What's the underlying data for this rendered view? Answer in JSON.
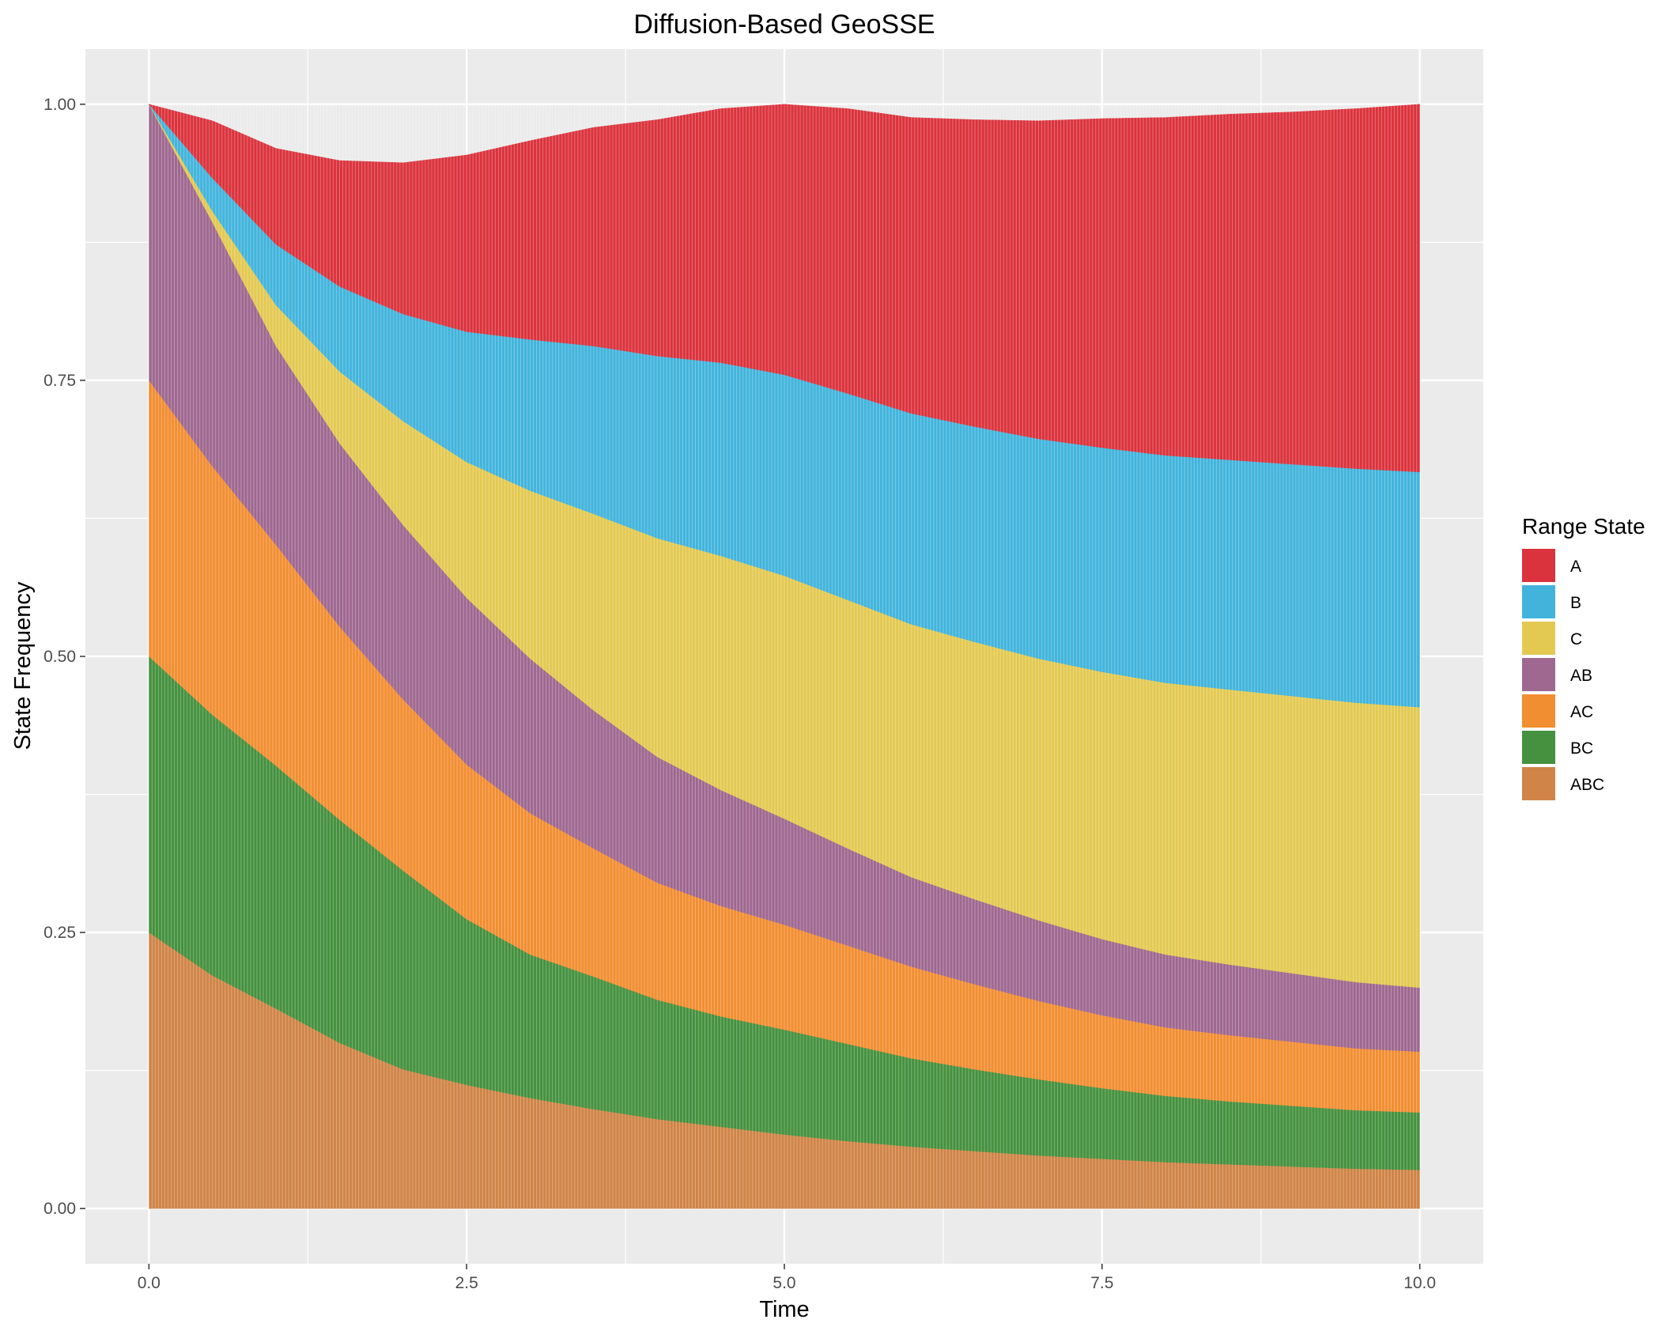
{
  "chart_data": {
    "type": "area",
    "stacked": true,
    "title": "Diffusion-Based GeoSSE",
    "xlabel": "Time",
    "ylabel": "State Frequency",
    "xlim": [
      -0.5,
      10.5
    ],
    "ylim": [
      -0.05,
      1.05
    ],
    "x_ticks": [
      "0.0",
      "2.5",
      "5.0",
      "7.5",
      "10.0"
    ],
    "x_tick_values": [
      0,
      2.5,
      5,
      7.5,
      10
    ],
    "y_ticks": [
      "0.00",
      "0.25",
      "0.50",
      "0.75",
      "1.00"
    ],
    "y_tick_values": [
      0,
      0.25,
      0.5,
      0.75,
      1.0
    ],
    "grid": true,
    "legend": {
      "title": "Range State",
      "position": "right"
    },
    "x": [
      0,
      0.5,
      1,
      1.5,
      2,
      2.5,
      3,
      3.5,
      4,
      4.5,
      5,
      5.5,
      6,
      6.5,
      7,
      7.5,
      8,
      8.5,
      9,
      9.5,
      10
    ],
    "stack_order_bottom_to_top": [
      "ABC",
      "BC",
      "AC",
      "AB",
      "C",
      "B",
      "A"
    ],
    "series": [
      {
        "name": "A",
        "color": "#DB333D",
        "values": [
          0,
          0.052,
          0.087,
          0.114,
          0.137,
          0.16,
          0.18,
          0.198,
          0.214,
          0.23,
          0.245,
          0.258,
          0.268,
          0.278,
          0.288,
          0.298,
          0.306,
          0.313,
          0.319,
          0.326,
          0.333
        ]
      },
      {
        "name": "B",
        "color": "#42B4DC",
        "values": [
          0,
          0.03,
          0.055,
          0.077,
          0.097,
          0.118,
          0.137,
          0.152,
          0.165,
          0.175,
          0.182,
          0.187,
          0.191,
          0.195,
          0.199,
          0.203,
          0.206,
          0.208,
          0.21,
          0.212,
          0.213
        ]
      },
      {
        "name": "C",
        "color": "#E3C952",
        "values": [
          0,
          0.01,
          0.037,
          0.065,
          0.094,
          0.123,
          0.152,
          0.178,
          0.198,
          0.212,
          0.22,
          0.225,
          0.229,
          0.233,
          0.237,
          0.242,
          0.246,
          0.249,
          0.251,
          0.253,
          0.254
        ]
      },
      {
        "name": "AB",
        "color": "#9F6890",
        "values": [
          0.25,
          0.221,
          0.18,
          0.166,
          0.158,
          0.151,
          0.14,
          0.125,
          0.114,
          0.105,
          0.096,
          0.088,
          0.081,
          0.077,
          0.073,
          0.069,
          0.066,
          0.064,
          0.062,
          0.06,
          0.058
        ]
      },
      {
        "name": "AC",
        "color": "#F28E32",
        "values": [
          0.25,
          0.225,
          0.2,
          0.175,
          0.155,
          0.14,
          0.128,
          0.116,
          0.106,
          0.1,
          0.095,
          0.089,
          0.083,
          0.077,
          0.071,
          0.066,
          0.062,
          0.06,
          0.058,
          0.056,
          0.055
        ]
      },
      {
        "name": "BC",
        "color": "#45913F",
        "values": [
          0.25,
          0.236,
          0.22,
          0.202,
          0.18,
          0.15,
          0.13,
          0.12,
          0.108,
          0.1,
          0.095,
          0.088,
          0.08,
          0.074,
          0.069,
          0.064,
          0.06,
          0.057,
          0.055,
          0.053,
          0.052
        ]
      },
      {
        "name": "ABC",
        "color": "#D08447",
        "values": [
          0.25,
          0.211,
          0.181,
          0.15,
          0.126,
          0.112,
          0.1,
          0.09,
          0.081,
          0.074,
          0.067,
          0.061,
          0.056,
          0.052,
          0.048,
          0.045,
          0.042,
          0.04,
          0.038,
          0.036,
          0.035
        ]
      }
    ]
  }
}
